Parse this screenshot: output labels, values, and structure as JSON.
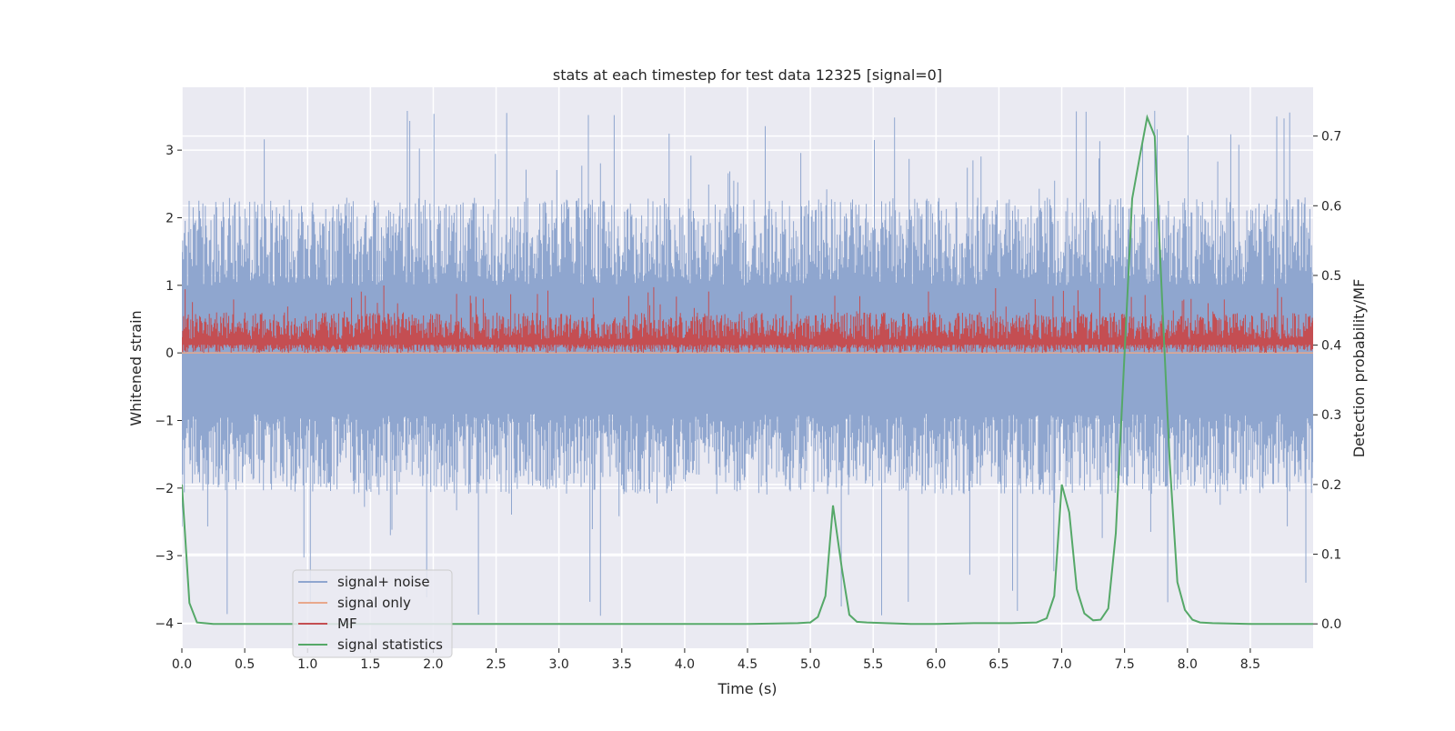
{
  "chart_data": {
    "type": "line",
    "title": "stats at each timestep for test data 12325 [signal=0]",
    "xlabel": "Time (s)",
    "ylabel": "Whitened strain",
    "ylabel_right": "Detection probability/MF",
    "xlim": [
      0.0,
      9.0
    ],
    "ylim": [
      -4.37,
      3.93
    ],
    "ylim_right": [
      -0.035,
      0.77
    ],
    "x_ticks": [
      "0.0",
      "0.5",
      "1.0",
      "1.5",
      "2.0",
      "2.5",
      "3.0",
      "3.5",
      "4.0",
      "4.5",
      "5.0",
      "5.5",
      "6.0",
      "6.5",
      "7.0",
      "7.5",
      "8.0",
      "8.5"
    ],
    "y_ticks": [
      "−4",
      "−3",
      "−2",
      "−1",
      "0",
      "1",
      "2",
      "3"
    ],
    "y_ticks_right": [
      "0.0",
      "0.1",
      "0.2",
      "0.3",
      "0.4",
      "0.5",
      "0.6",
      "0.7"
    ],
    "grid": true,
    "legend_position": "lower-left",
    "series": [
      {
        "name": "signal+ noise",
        "color": "#8fa6cf",
        "axis": "left",
        "envelope": {
          "upper_typical": [
            1.0,
            2.3
          ],
          "lower_typical": [
            -0.9,
            -2.1
          ],
          "max": 3.6,
          "min": -4.0
        }
      },
      {
        "name": "signal only",
        "color": "#e8a88c",
        "axis": "left",
        "value": 0.0
      },
      {
        "name": "MF",
        "color": "#c44e52",
        "axis": "left",
        "envelope": {
          "min": 0.0,
          "typical_max": 0.6,
          "max": 1.0
        }
      },
      {
        "name": "signal statistics",
        "color": "#55a868",
        "axis": "right",
        "x": [
          0.0,
          0.06,
          0.12,
          0.18,
          0.25,
          0.5,
          1.0,
          2.0,
          3.0,
          4.0,
          4.5,
          4.9,
          5.0,
          5.06,
          5.12,
          5.18,
          5.25,
          5.31,
          5.37,
          5.45,
          5.6,
          5.8,
          6.0,
          6.3,
          6.6,
          6.8,
          6.88,
          6.94,
          7.0,
          7.06,
          7.12,
          7.18,
          7.25,
          7.31,
          7.37,
          7.43,
          7.5,
          7.56,
          7.62,
          7.68,
          7.74,
          7.8,
          7.86,
          7.92,
          7.98,
          8.04,
          8.1,
          8.2,
          8.5,
          9.0
        ],
        "values": [
          0.2,
          0.03,
          0.002,
          0.001,
          0.0,
          0.0,
          0.0,
          0.0,
          0.0,
          0.0,
          0.0,
          0.001,
          0.002,
          0.01,
          0.04,
          0.17,
          0.08,
          0.013,
          0.003,
          0.002,
          0.001,
          0.0,
          0.0,
          0.001,
          0.001,
          0.002,
          0.008,
          0.04,
          0.2,
          0.16,
          0.05,
          0.015,
          0.005,
          0.006,
          0.022,
          0.13,
          0.39,
          0.61,
          0.67,
          0.727,
          0.7,
          0.46,
          0.23,
          0.06,
          0.02,
          0.006,
          0.002,
          0.001,
          0.0,
          0.0
        ]
      }
    ]
  }
}
